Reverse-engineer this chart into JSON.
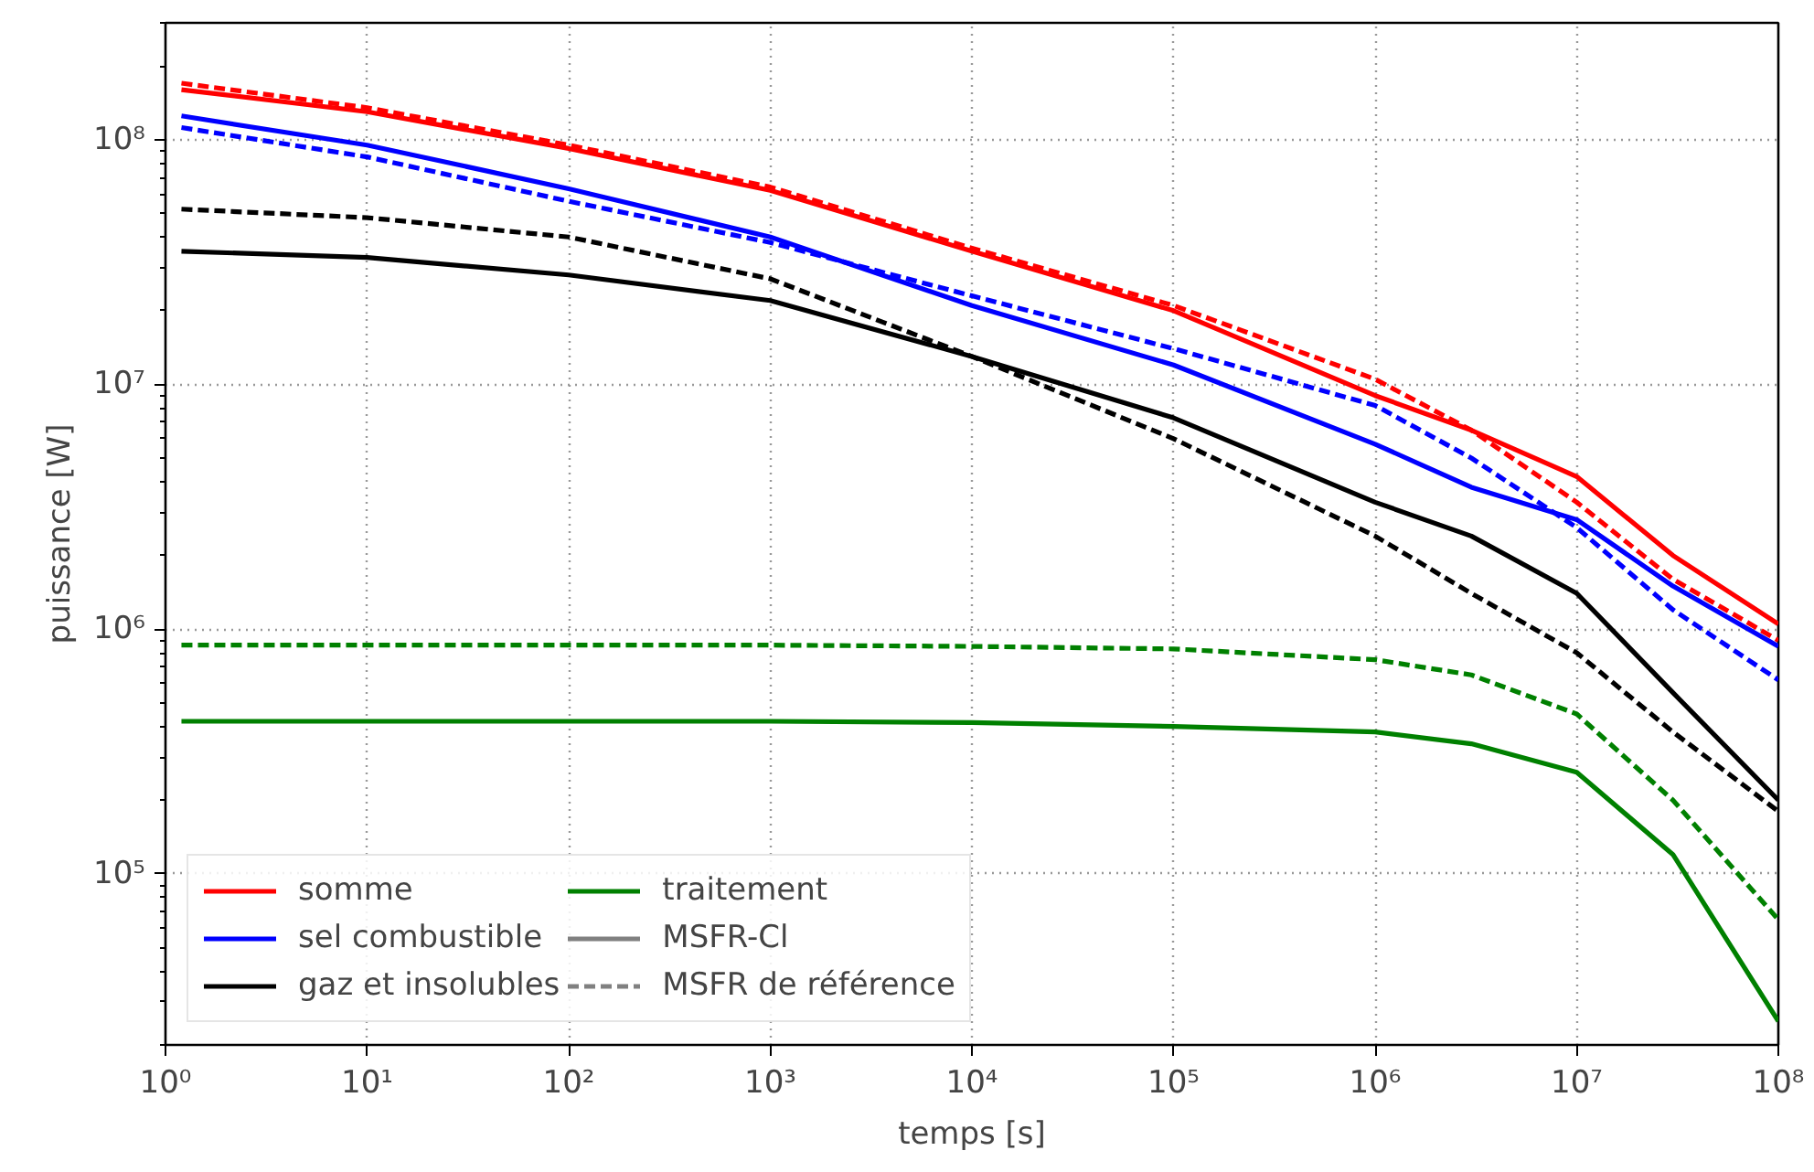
{
  "chart_data": {
    "type": "line",
    "xlabel": "temps [s]",
    "ylabel": "puissance [W]",
    "log": "xy",
    "grid": true,
    "legend": "bottom left",
    "line_style": "solid",
    "marker": "none",
    "x": [
      1.2,
      10,
      100,
      1000,
      10000,
      100000,
      1000000,
      3000000,
      10000000,
      30000000,
      100000000
    ],
    "xlim": [
      1,
      100000000
    ],
    "ylim": [
      20000,
      300000000
    ],
    "xticks": [
      {
        "value": 1,
        "label": "10⁰"
      },
      {
        "value": 10,
        "label": "10¹"
      },
      {
        "value": 100,
        "label": "10²"
      },
      {
        "value": 1000,
        "label": "10³"
      },
      {
        "value": 10000,
        "label": "10⁴"
      },
      {
        "value": 100000,
        "label": "10⁵"
      },
      {
        "value": 1000000,
        "label": "10⁶"
      },
      {
        "value": 10000000,
        "label": "10⁷"
      },
      {
        "value": 100000000,
        "label": "10⁸"
      }
    ],
    "yticks": [
      {
        "value": 100000,
        "label": "10⁵"
      },
      {
        "value": 1000000,
        "label": "10⁶"
      },
      {
        "value": 10000000,
        "label": "10⁷"
      },
      {
        "value": 100000000,
        "label": "10⁸"
      }
    ],
    "series": [
      {
        "name": "somme",
        "color": "#ff0000",
        "values": [
          160000000,
          130000000,
          92000000,
          62000000,
          35000000,
          20000000,
          9000000,
          6500000,
          4200000,
          2000000,
          1050000
        ]
      },
      {
        "name": "sel combustible",
        "color": "#0000ff",
        "values": [
          125000000,
          95000000,
          63000000,
          40000000,
          21000000,
          12000000,
          5700000,
          3800000,
          2800000,
          1500000,
          850000
        ]
      },
      {
        "name": "gaz et insolubles",
        "color": "#000000",
        "values": [
          35000000,
          33000000,
          28000000,
          22000000,
          13000000,
          7300000,
          3300000,
          2400000,
          1400000,
          550000,
          200000
        ]
      },
      {
        "name": "traitement",
        "color": "#008000",
        "values": [
          420000,
          420000,
          420000,
          420000,
          415000,
          400000,
          380000,
          340000,
          260000,
          120000,
          25000
        ]
      },
      {
        "name": "MSFR-Cl",
        "color": "#808080",
        "values": [
          null,
          null,
          null,
          null,
          null,
          null,
          null,
          null,
          null,
          null,
          null
        ]
      },
      {
        "name": "MSFR de référence",
        "color": "#808080",
        "line_style": "dashed",
        "values": [
          null,
          null,
          null,
          null,
          null,
          null,
          null,
          null,
          null,
          null,
          null
        ]
      },
      {
        "color": "#ff0000",
        "line_style": "dashed",
        "values": [
          170000000,
          135000000,
          95000000,
          64000000,
          36000000,
          21000000,
          10500000,
          6500000,
          3300000,
          1600000,
          900000
        ]
      },
      {
        "color": "#0000ff",
        "line_style": "dashed",
        "values": [
          112000000,
          85000000,
          56000000,
          38000000,
          23000000,
          14000000,
          8200000,
          5000000,
          2600000,
          1200000,
          620000
        ]
      },
      {
        "color": "#000000",
        "line_style": "dashed",
        "values": [
          52000000,
          48000000,
          40000000,
          27000000,
          13000000,
          6000000,
          2400000,
          1400000,
          800000,
          380000,
          180000
        ]
      },
      {
        "color": "#008000",
        "line_style": "dashed",
        "values": [
          860000,
          860000,
          860000,
          860000,
          850000,
          830000,
          750000,
          650000,
          450000,
          200000,
          65000
        ]
      }
    ]
  }
}
